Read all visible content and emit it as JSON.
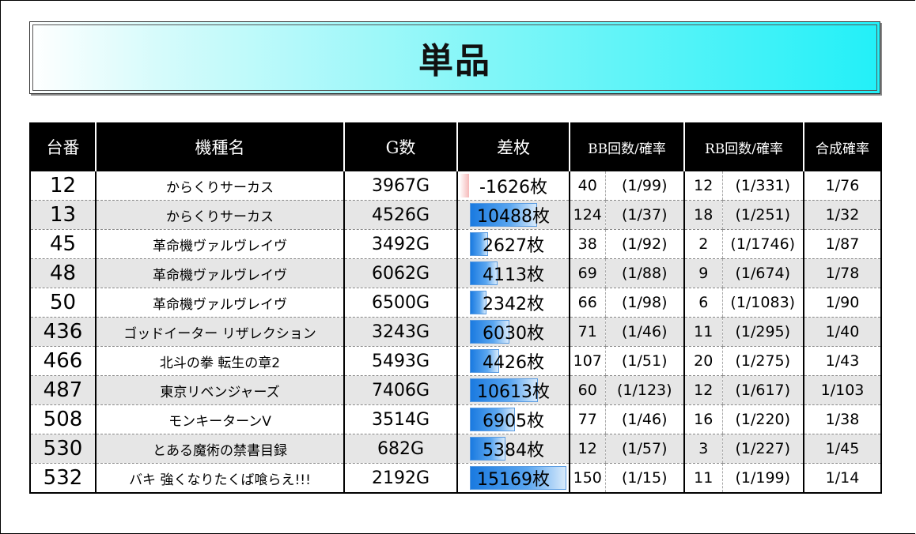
{
  "title": "単品",
  "headers": {
    "no": "台番",
    "name": "機種名",
    "games": "G数",
    "diff": "差枚",
    "bb": "BB回数/確率",
    "rb": "RB回数/確率",
    "combined": "合成確率"
  },
  "diff_bar_max": 15169,
  "rows": [
    {
      "no": "12",
      "name": "からくりサーカス",
      "games": "3967G",
      "diff": "-1626枚",
      "diff_value": -1626,
      "bb_count": "40",
      "bb_prob": "(1/99)",
      "rb_count": "12",
      "rb_prob": "(1/331)",
      "combined": "1/76"
    },
    {
      "no": "13",
      "name": "からくりサーカス",
      "games": "4526G",
      "diff": "10488枚",
      "diff_value": 10488,
      "bb_count": "124",
      "bb_prob": "(1/37)",
      "rb_count": "18",
      "rb_prob": "(1/251)",
      "combined": "1/32"
    },
    {
      "no": "45",
      "name": "革命機ヴァルヴレイヴ",
      "games": "3492G",
      "diff": "2627枚",
      "diff_value": 2627,
      "bb_count": "38",
      "bb_prob": "(1/92)",
      "rb_count": "2",
      "rb_prob": "(1/1746)",
      "combined": "1/87"
    },
    {
      "no": "48",
      "name": "革命機ヴァルヴレイヴ",
      "games": "6062G",
      "diff": "4113枚",
      "diff_value": 4113,
      "bb_count": "69",
      "bb_prob": "(1/88)",
      "rb_count": "9",
      "rb_prob": "(1/674)",
      "combined": "1/78"
    },
    {
      "no": "50",
      "name": "革命機ヴァルヴレイヴ",
      "games": "6500G",
      "diff": "2342枚",
      "diff_value": 2342,
      "bb_count": "66",
      "bb_prob": "(1/98)",
      "rb_count": "6",
      "rb_prob": "(1/1083)",
      "combined": "1/90"
    },
    {
      "no": "436",
      "name": "ゴッドイーター リザレクション",
      "games": "3243G",
      "diff": "6030枚",
      "diff_value": 6030,
      "bb_count": "71",
      "bb_prob": "(1/46)",
      "rb_count": "11",
      "rb_prob": "(1/295)",
      "combined": "1/40"
    },
    {
      "no": "466",
      "name": "北斗の拳 転生の章2",
      "games": "5493G",
      "diff": "4426枚",
      "diff_value": 4426,
      "bb_count": "107",
      "bb_prob": "(1/51)",
      "rb_count": "20",
      "rb_prob": "(1/275)",
      "combined": "1/43"
    },
    {
      "no": "487",
      "name": "東京リベンジャーズ",
      "games": "7406G",
      "diff": "10613枚",
      "diff_value": 10613,
      "bb_count": "60",
      "bb_prob": "(1/123)",
      "rb_count": "12",
      "rb_prob": "(1/617)",
      "combined": "1/103"
    },
    {
      "no": "508",
      "name": "モンキーターンV",
      "games": "3514G",
      "diff": "6905枚",
      "diff_value": 6905,
      "bb_count": "77",
      "bb_prob": "(1/46)",
      "rb_count": "16",
      "rb_prob": "(1/220)",
      "combined": "1/38"
    },
    {
      "no": "530",
      "name": "とある魔術の禁書目録",
      "games": "682G",
      "diff": "5384枚",
      "diff_value": 5384,
      "bb_count": "12",
      "bb_prob": "(1/57)",
      "rb_count": "3",
      "rb_prob": "(1/227)",
      "combined": "1/45"
    },
    {
      "no": "532",
      "name": "バキ 強くなりたくば喰らえ!!!",
      "games": "2192G",
      "diff": "15169枚",
      "diff_value": 15169,
      "bb_count": "150",
      "bb_prob": "(1/15)",
      "rb_count": "11",
      "rb_prob": "(1/199)",
      "combined": "1/14"
    }
  ]
}
